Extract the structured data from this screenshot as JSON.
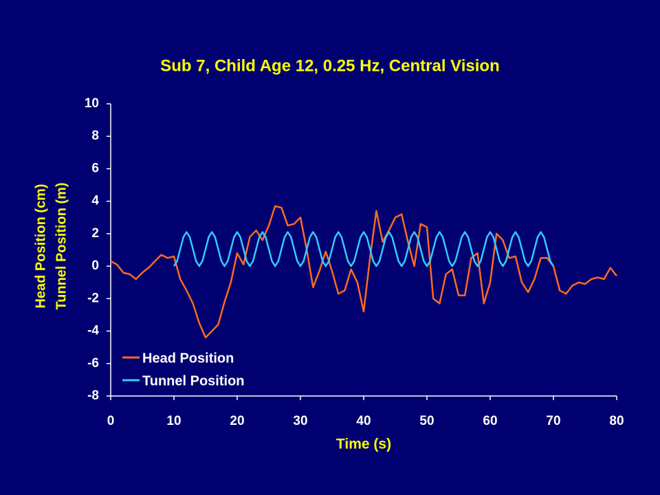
{
  "chart_data": {
    "type": "line",
    "title": "Sub 7, Child Age 12, 0.25 Hz, Central Vision",
    "xlabel": "Time (s)",
    "ylabel": [
      "Head Position (cm)",
      "Tunnel Position (m)"
    ],
    "xlim": [
      0,
      80
    ],
    "xticks": [
      0,
      10,
      20,
      30,
      40,
      50,
      60,
      70,
      80
    ],
    "ylim": [
      -8,
      10
    ],
    "yticks": [
      -8,
      -6,
      -4,
      -2,
      0,
      2,
      4,
      6,
      8,
      10
    ],
    "legend": "lower left",
    "series": [
      {
        "name": "Head Position",
        "color": "#ff6a1f",
        "x": [
          0,
          1,
          2,
          3,
          4,
          5,
          6,
          7,
          8,
          9,
          10,
          11,
          12,
          13,
          14,
          15,
          16,
          17,
          18,
          19,
          20,
          21,
          22,
          23,
          24,
          25,
          26,
          27,
          28,
          29,
          30,
          31,
          32,
          33,
          34,
          35,
          36,
          37,
          38,
          39,
          40,
          41,
          42,
          43,
          44,
          45,
          46,
          47,
          48,
          49,
          50,
          51,
          52,
          53,
          54,
          55,
          56,
          57,
          58,
          59,
          60,
          61,
          62,
          63,
          64,
          65,
          66,
          67,
          68,
          69,
          70,
          71,
          72,
          73,
          74,
          75,
          76,
          77,
          78,
          79,
          80
        ],
        "values": [
          0.3,
          0.1,
          -0.4,
          -0.5,
          -0.8,
          -0.4,
          -0.1,
          0.3,
          0.7,
          0.5,
          0.6,
          -0.8,
          -1.5,
          -2.3,
          -3.5,
          -4.4,
          -4.0,
          -3.6,
          -2.2,
          -1.0,
          0.8,
          0.1,
          1.8,
          2.2,
          1.6,
          2.5,
          3.7,
          3.6,
          2.5,
          2.6,
          3.0,
          1.0,
          -1.3,
          -0.3,
          0.9,
          -0.3,
          -1.7,
          -1.5,
          -0.2,
          -1.0,
          -2.8,
          0.5,
          3.4,
          1.5,
          2.2,
          3.0,
          3.2,
          1.5,
          0.0,
          2.6,
          2.4,
          -2.0,
          -2.3,
          -0.5,
          -0.2,
          -1.8,
          -1.8,
          0.5,
          0.8,
          -2.3,
          -1.0,
          2.0,
          1.6,
          0.5,
          0.6,
          -1.0,
          -1.6,
          -0.8,
          0.5,
          0.5,
          0.0,
          -1.5,
          -1.7,
          -1.2,
          -1.0,
          -1.1,
          -0.8,
          -0.7,
          -0.8,
          -0.1,
          -0.6
        ]
      },
      {
        "name": "Tunnel Position",
        "color": "#33ccff",
        "x": [
          10,
          10.5,
          11,
          11.5,
          12,
          12.5,
          13,
          13.5,
          14,
          14.5,
          15,
          15.5,
          16,
          16.5,
          17,
          17.5,
          18,
          18.5,
          19,
          19.5,
          20,
          20.5,
          21,
          21.5,
          22,
          22.5,
          23,
          23.5,
          24,
          24.5,
          25,
          25.5,
          26,
          26.5,
          27,
          27.5,
          28,
          28.5,
          29,
          29.5,
          30,
          30.5,
          31,
          31.5,
          32,
          32.5,
          33,
          33.5,
          34,
          34.5,
          35,
          35.5,
          36,
          36.5,
          37,
          37.5,
          38,
          38.5,
          39,
          39.5,
          40,
          40.5,
          41,
          41.5,
          42,
          42.5,
          43,
          43.5,
          44,
          44.5,
          45,
          45.5,
          46,
          46.5,
          47,
          47.5,
          48,
          48.5,
          49,
          49.5,
          50,
          50.5,
          51,
          51.5,
          52,
          52.5,
          53,
          53.5,
          54,
          54.5,
          55,
          55.5,
          56,
          56.5,
          57,
          57.5,
          58,
          58.5,
          59,
          59.5,
          60,
          60.5,
          61,
          61.5,
          62,
          62.5,
          63,
          63.5,
          64,
          64.5,
          65,
          65.5,
          66,
          66.5,
          67,
          67.5,
          68,
          68.5,
          69,
          69.5,
          70
        ],
        "values": [
          0,
          0.31,
          1.05,
          1.79,
          2.1,
          1.79,
          1.05,
          0.31,
          0,
          0.31,
          1.05,
          1.79,
          2.1,
          1.79,
          1.05,
          0.31,
          0,
          0.31,
          1.05,
          1.79,
          2.1,
          1.79,
          1.05,
          0.31,
          0,
          0.31,
          1.05,
          1.79,
          2.1,
          1.79,
          1.05,
          0.31,
          0,
          0.31,
          1.05,
          1.79,
          2.1,
          1.79,
          1.05,
          0.31,
          0,
          0.31,
          1.05,
          1.79,
          2.1,
          1.79,
          1.05,
          0.31,
          0,
          0.31,
          1.05,
          1.79,
          2.1,
          1.79,
          1.05,
          0.31,
          0,
          0.31,
          1.05,
          1.79,
          2.1,
          1.79,
          1.05,
          0.31,
          0,
          0.31,
          1.05,
          1.79,
          2.1,
          1.79,
          1.05,
          0.31,
          0,
          0.31,
          1.05,
          1.79,
          2.1,
          1.79,
          1.05,
          0.31,
          0,
          0.31,
          1.05,
          1.79,
          2.1,
          1.79,
          1.05,
          0.31,
          0,
          0.31,
          1.05,
          1.79,
          2.1,
          1.79,
          1.05,
          0.31,
          0,
          0.31,
          1.05,
          1.79,
          2.1,
          1.79,
          1.05,
          0.31,
          0,
          0.31,
          1.05,
          1.79,
          2.1,
          1.79,
          1.05,
          0.31,
          0,
          0.31,
          1.05,
          1.79,
          2.1,
          1.79,
          1.05,
          0.31,
          0
        ]
      }
    ]
  }
}
